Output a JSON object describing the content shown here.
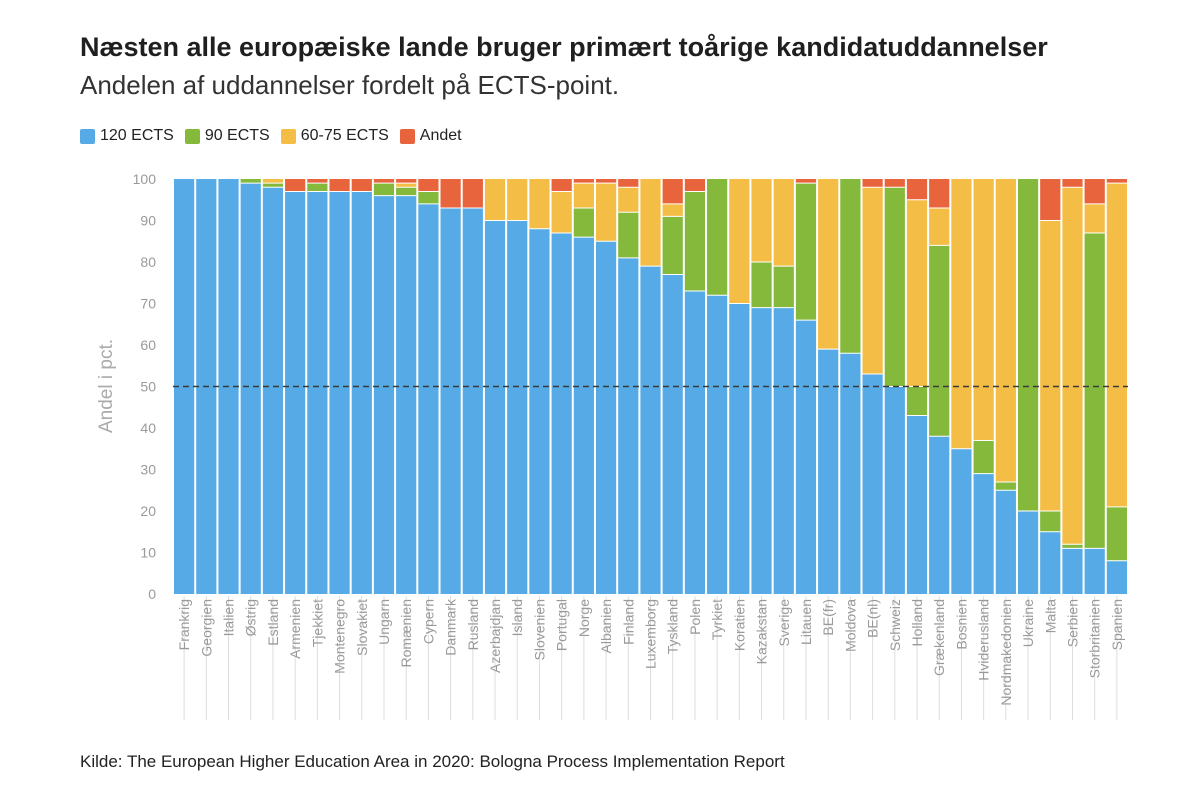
{
  "title": "Næsten alle europæiske lande bruger primært toårige kandidatuddannelser",
  "subtitle": "Andelen af uddannelser fordelt på ECTS-point.",
  "source": "Kilde: The European Higher Education Area in 2020: Bologna Process Implementation Report",
  "legend": [
    {
      "label": "120 ECTS",
      "color": "#56abe6"
    },
    {
      "label": "90 ECTS",
      "color": "#84b93c"
    },
    {
      "label": "60-75 ECTS",
      "color": "#f4bd45"
    },
    {
      "label": "Andet",
      "color": "#e8643c"
    }
  ],
  "chart_data": {
    "type": "bar",
    "stacked": true,
    "ylabel": "Andel i pct.",
    "xlabel": "",
    "ylim": [
      0,
      100
    ],
    "yticks": [
      0,
      10,
      20,
      30,
      40,
      50,
      60,
      70,
      80,
      90,
      100
    ],
    "reference_line": 50,
    "grid": false,
    "legend_position": "top-left",
    "categories": [
      "Frankrig",
      "Georgien",
      "Italien",
      "Østrig",
      "Estland",
      "Armenien",
      "Tjekkiet",
      "Montenegro",
      "Slovakiet",
      "Ungarn",
      "Romænien",
      "Cypern",
      "Danmark",
      "Rusland",
      "Azerbajdjan",
      "Island",
      "Slovenien",
      "Portugal",
      "Norge",
      "Albanien",
      "Finland",
      "Luxemborg",
      "Tyskland",
      "Polen",
      "Tyrkiet",
      "Koratien",
      "Kazakstan",
      "Sverige",
      "Litauen",
      "BE(fr)",
      "Moldova",
      "BE(nl)",
      "Schweiz",
      "Holland",
      "Grækenland",
      "Bosnien",
      "Hviderusland",
      "Nordmakedonien",
      "Ukraine",
      "Malta",
      "Serbien",
      "Storbritanien",
      "Spanien"
    ],
    "series": [
      {
        "name": "120 ECTS",
        "color": "#56abe6",
        "values": [
          100,
          100,
          100,
          99,
          98,
          97,
          97,
          97,
          97,
          96,
          96,
          94,
          93,
          93,
          90,
          90,
          88,
          87,
          86,
          85,
          81,
          79,
          77,
          73,
          72,
          70,
          69,
          69,
          66,
          59,
          58,
          53,
          50,
          43,
          38,
          35,
          29,
          25,
          20,
          15,
          11,
          11,
          8
        ]
      },
      {
        "name": "90 ECTS",
        "color": "#84b93c",
        "values": [
          0,
          0,
          0,
          1,
          1,
          0,
          2,
          0,
          0,
          3,
          2,
          3,
          0,
          0,
          0,
          0,
          0,
          0,
          7,
          0,
          11,
          0,
          14,
          24,
          28,
          0,
          11,
          10,
          33,
          0,
          42,
          0,
          48,
          7,
          46,
          0,
          8,
          2,
          80,
          5,
          1,
          76,
          13
        ]
      },
      {
        "name": "60-75 ECTS",
        "color": "#f4bd45",
        "values": [
          0,
          0,
          0,
          0,
          1,
          0,
          0,
          0,
          0,
          0,
          1,
          0,
          0,
          0,
          10,
          10,
          12,
          10,
          6,
          14,
          6,
          21,
          3,
          0,
          0,
          30,
          20,
          21,
          0,
          41,
          0,
          45,
          0,
          45,
          9,
          65,
          63,
          73,
          0,
          70,
          86,
          7,
          78
        ]
      },
      {
        "name": "Andet",
        "color": "#e8643c",
        "values": [
          0,
          0,
          0,
          0,
          0,
          3,
          1,
          3,
          3,
          1,
          1,
          3,
          7,
          7,
          0,
          0,
          0,
          3,
          1,
          1,
          2,
          0,
          6,
          3,
          0,
          0,
          0,
          0,
          1,
          0,
          0,
          2,
          2,
          5,
          7,
          0,
          0,
          0,
          0,
          10,
          2,
          6,
          1
        ]
      }
    ]
  }
}
